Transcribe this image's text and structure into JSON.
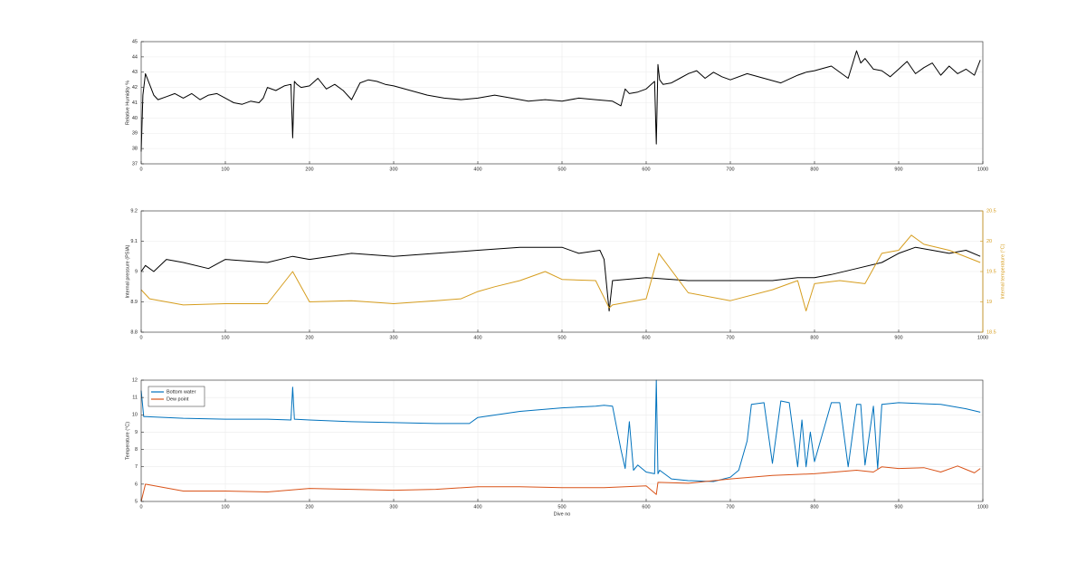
{
  "chart_data": [
    {
      "type": "line",
      "ylabel": "Relative Humidity %",
      "xlim": [
        0,
        1000
      ],
      "ylim": [
        37,
        45
      ],
      "xticks": [
        0,
        100,
        200,
        300,
        400,
        500,
        600,
        700,
        800,
        900,
        1000
      ],
      "yticks": [
        37,
        38,
        39,
        40,
        41,
        42,
        43,
        44,
        45
      ],
      "grid": true,
      "series": [
        {
          "color": "#000000",
          "x": [
            0,
            2,
            5,
            10,
            15,
            20,
            30,
            40,
            50,
            60,
            70,
            80,
            90,
            100,
            110,
            120,
            130,
            140,
            145,
            150,
            160,
            170,
            178,
            180,
            182,
            185,
            190,
            200,
            210,
            220,
            230,
            240,
            250,
            260,
            270,
            280,
            290,
            300,
            320,
            340,
            360,
            380,
            400,
            420,
            440,
            460,
            480,
            500,
            520,
            540,
            560,
            570,
            575,
            580,
            590,
            600,
            610,
            612,
            614,
            616,
            620,
            630,
            640,
            650,
            660,
            670,
            680,
            690,
            700,
            720,
            740,
            760,
            780,
            790,
            800,
            820,
            840,
            850,
            855,
            860,
            870,
            880,
            890,
            900,
            910,
            920,
            930,
            940,
            950,
            960,
            970,
            980,
            990,
            997
          ],
          "values": [
            37.8,
            41.5,
            42.9,
            42.2,
            41.5,
            41.2,
            41.4,
            41.6,
            41.3,
            41.6,
            41.2,
            41.5,
            41.6,
            41.3,
            41.0,
            40.9,
            41.1,
            41.0,
            41.3,
            42.0,
            41.8,
            42.1,
            42.2,
            38.7,
            42.4,
            42.2,
            42.0,
            42.1,
            42.6,
            41.9,
            42.2,
            41.8,
            41.2,
            42.3,
            42.5,
            42.4,
            42.2,
            42.1,
            41.8,
            41.5,
            41.3,
            41.2,
            41.3,
            41.5,
            41.3,
            41.1,
            41.2,
            41.1,
            41.3,
            41.2,
            41.1,
            40.8,
            41.9,
            41.6,
            41.7,
            41.9,
            42.4,
            38.3,
            43.5,
            42.5,
            42.2,
            42.3,
            42.6,
            42.9,
            43.1,
            42.6,
            43.0,
            42.7,
            42.5,
            42.9,
            42.6,
            42.3,
            42.8,
            43.0,
            43.1,
            43.4,
            42.6,
            44.4,
            43.6,
            43.9,
            43.2,
            43.1,
            42.7,
            43.2,
            43.7,
            42.9,
            43.3,
            43.6,
            42.8,
            43.4,
            42.9,
            43.2,
            42.8,
            43.8
          ]
        }
      ]
    },
    {
      "type": "line",
      "ylabel": "Internal pressure (PSIA)",
      "ylabel_right": "Internal temperature (°C)",
      "xlim": [
        0,
        1000
      ],
      "ylim": [
        8.8,
        9.2
      ],
      "ylim_right": [
        18.5,
        20.5
      ],
      "xticks": [
        0,
        100,
        200,
        300,
        400,
        500,
        600,
        700,
        800,
        900,
        1000
      ],
      "yticks": [
        8.8,
        8.9,
        9,
        9.1,
        9.2
      ],
      "yticks_right": [
        18.5,
        19,
        19.5,
        20,
        20.5
      ],
      "grid": true,
      "series": [
        {
          "axis": "left",
          "color": "#000000",
          "x": [
            0,
            5,
            15,
            30,
            50,
            80,
            100,
            150,
            180,
            200,
            250,
            300,
            350,
            400,
            450,
            500,
            520,
            545,
            550,
            556,
            560,
            600,
            650,
            700,
            750,
            780,
            800,
            820,
            850,
            880,
            900,
            920,
            940,
            960,
            980,
            997
          ],
          "values": [
            9.0,
            9.02,
            9.0,
            9.04,
            9.03,
            9.01,
            9.04,
            9.03,
            9.05,
            9.04,
            9.06,
            9.05,
            9.06,
            9.07,
            9.08,
            9.08,
            9.06,
            9.07,
            9.04,
            8.87,
            8.97,
            8.98,
            8.97,
            8.97,
            8.97,
            8.98,
            8.98,
            8.99,
            9.01,
            9.03,
            9.06,
            9.08,
            9.07,
            9.06,
            9.07,
            9.05
          ]
        },
        {
          "axis": "right",
          "color": "#d69d1e",
          "x": [
            0,
            10,
            50,
            100,
            150,
            180,
            200,
            250,
            300,
            350,
            380,
            400,
            420,
            450,
            480,
            500,
            540,
            556,
            560,
            600,
            615,
            650,
            700,
            750,
            780,
            790,
            800,
            830,
            860,
            880,
            900,
            915,
            930,
            960,
            997
          ],
          "values": [
            19.2,
            19.05,
            18.95,
            18.97,
            18.97,
            19.5,
            19.0,
            19.02,
            18.97,
            19.02,
            19.05,
            19.17,
            19.25,
            19.35,
            19.5,
            19.37,
            19.35,
            18.9,
            18.95,
            19.05,
            19.8,
            19.15,
            19.02,
            19.2,
            19.35,
            18.85,
            19.3,
            19.35,
            19.3,
            19.8,
            19.85,
            20.1,
            19.95,
            19.85,
            19.65
          ]
        }
      ]
    },
    {
      "type": "line",
      "ylabel": "Temperature (°C)",
      "xlabel": "Dive no",
      "xlim": [
        0,
        1000
      ],
      "ylim": [
        5,
        12
      ],
      "xticks": [
        0,
        100,
        200,
        300,
        400,
        500,
        600,
        700,
        800,
        900,
        1000
      ],
      "yticks": [
        5,
        6,
        7,
        8,
        9,
        10,
        11,
        12
      ],
      "grid": true,
      "legend": "top-left",
      "series": [
        {
          "name": "Bottom water",
          "color": "#0072bd",
          "x": [
            0,
            3,
            5,
            50,
            100,
            150,
            178,
            180,
            182,
            200,
            250,
            300,
            350,
            390,
            400,
            450,
            500,
            540,
            550,
            560,
            570,
            575,
            580,
            585,
            590,
            600,
            610,
            612,
            614,
            616,
            630,
            650,
            680,
            700,
            710,
            720,
            725,
            740,
            750,
            760,
            770,
            780,
            785,
            790,
            795,
            800,
            820,
            830,
            840,
            850,
            855,
            860,
            870,
            875,
            880,
            900,
            950,
            980,
            997
          ],
          "values": [
            11.4,
            9.9,
            9.9,
            9.8,
            9.75,
            9.75,
            9.7,
            11.6,
            9.75,
            9.7,
            9.6,
            9.55,
            9.5,
            9.5,
            9.85,
            10.2,
            10.4,
            10.5,
            10.55,
            10.5,
            8.0,
            6.9,
            9.6,
            6.8,
            7.1,
            6.7,
            6.6,
            12.0,
            6.6,
            6.8,
            6.3,
            6.2,
            6.15,
            6.4,
            6.8,
            8.5,
            10.6,
            10.7,
            7.2,
            10.8,
            10.7,
            7.0,
            9.7,
            7.0,
            9.0,
            7.3,
            10.7,
            10.7,
            7.0,
            10.6,
            10.6,
            7.1,
            10.5,
            6.9,
            10.6,
            10.7,
            10.6,
            10.35,
            10.15
          ]
        },
        {
          "name": "Dew point",
          "color": "#d95319",
          "x": [
            0,
            5,
            50,
            100,
            150,
            200,
            250,
            300,
            350,
            400,
            450,
            500,
            550,
            600,
            612,
            614,
            650,
            700,
            750,
            800,
            850,
            870,
            880,
            900,
            930,
            950,
            970,
            980,
            990,
            997
          ],
          "values": [
            5.0,
            6.0,
            5.6,
            5.6,
            5.55,
            5.75,
            5.7,
            5.65,
            5.7,
            5.85,
            5.85,
            5.8,
            5.8,
            5.9,
            5.4,
            6.1,
            6.05,
            6.3,
            6.5,
            6.6,
            6.8,
            6.7,
            7.0,
            6.9,
            6.95,
            6.7,
            7.05,
            6.85,
            6.65,
            6.9
          ]
        }
      ]
    }
  ]
}
